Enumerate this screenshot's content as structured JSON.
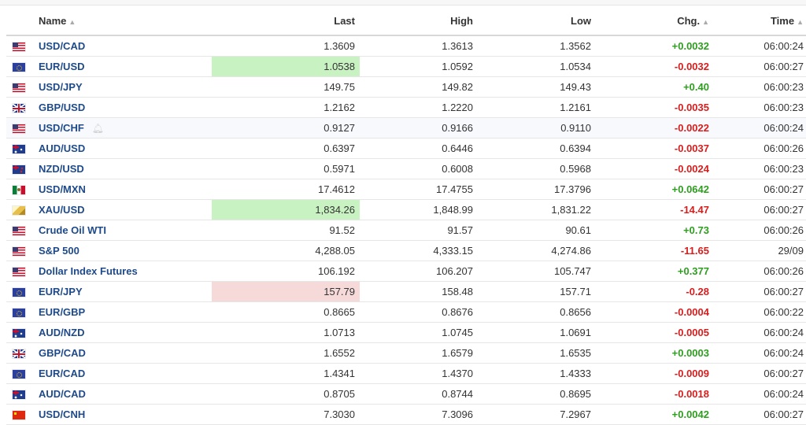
{
  "table": {
    "headers": {
      "name": "Name",
      "last": "Last",
      "high": "High",
      "low": "Low",
      "chg": "Chg.",
      "time": "Time"
    },
    "rows": [
      {
        "flag": "us",
        "name": "USD/CAD",
        "last": "1.3609",
        "high": "1.3613",
        "low": "1.3562",
        "chg": "+0.0032",
        "dir": "pos",
        "time": "06:00:24",
        "clock": "open",
        "hl": ""
      },
      {
        "flag": "eu",
        "name": "EUR/USD",
        "last": "1.0538",
        "high": "1.0592",
        "low": "1.0534",
        "chg": "-0.0032",
        "dir": "neg",
        "time": "06:00:27",
        "clock": "open",
        "hl": "up"
      },
      {
        "flag": "us",
        "name": "USD/JPY",
        "last": "149.75",
        "high": "149.82",
        "low": "149.43",
        "chg": "+0.40",
        "dir": "pos",
        "time": "06:00:23",
        "clock": "open",
        "hl": ""
      },
      {
        "flag": "gb",
        "name": "GBP/USD",
        "last": "1.2162",
        "high": "1.2220",
        "low": "1.2161",
        "chg": "-0.0035",
        "dir": "neg",
        "time": "06:00:23",
        "clock": "open",
        "hl": ""
      },
      {
        "flag": "us",
        "name": "USD/CHF",
        "last": "0.9127",
        "high": "0.9166",
        "low": "0.9110",
        "chg": "-0.0022",
        "dir": "neg",
        "time": "06:00:24",
        "clock": "open",
        "hl": "",
        "hover": true
      },
      {
        "flag": "au",
        "name": "AUD/USD",
        "last": "0.6397",
        "high": "0.6446",
        "low": "0.6394",
        "chg": "-0.0037",
        "dir": "neg",
        "time": "06:00:26",
        "clock": "open",
        "hl": ""
      },
      {
        "flag": "nz",
        "name": "NZD/USD",
        "last": "0.5971",
        "high": "0.6008",
        "low": "0.5968",
        "chg": "-0.0024",
        "dir": "neg",
        "time": "06:00:23",
        "clock": "open",
        "hl": ""
      },
      {
        "flag": "mx",
        "name": "USD/MXN",
        "last": "17.4612",
        "high": "17.4755",
        "low": "17.3796",
        "chg": "+0.0642",
        "dir": "pos",
        "time": "06:00:27",
        "clock": "open",
        "hl": ""
      },
      {
        "flag": "xau",
        "name": "XAU/USD",
        "last": "1,834.26",
        "high": "1,848.99",
        "low": "1,831.22",
        "chg": "-14.47",
        "dir": "neg",
        "time": "06:00:27",
        "clock": "open",
        "hl": "up"
      },
      {
        "flag": "us",
        "name": "Crude Oil WTI",
        "last": "91.52",
        "high": "91.57",
        "low": "90.61",
        "chg": "+0.73",
        "dir": "pos",
        "time": "06:00:26",
        "clock": "open",
        "hl": ""
      },
      {
        "flag": "us",
        "name": "S&P 500",
        "last": "4,288.05",
        "high": "4,333.15",
        "low": "4,274.86",
        "chg": "-11.65",
        "dir": "neg",
        "time": "29/09",
        "clock": "closed",
        "hl": ""
      },
      {
        "flag": "us",
        "name": "Dollar Index Futures",
        "last": "106.192",
        "high": "106.207",
        "low": "105.747",
        "chg": "+0.377",
        "dir": "pos",
        "time": "06:00:26",
        "clock": "open",
        "hl": ""
      },
      {
        "flag": "eu",
        "name": "EUR/JPY",
        "last": "157.79",
        "high": "158.48",
        "low": "157.71",
        "chg": "-0.28",
        "dir": "neg",
        "time": "06:00:27",
        "clock": "open",
        "hl": "down"
      },
      {
        "flag": "eu",
        "name": "EUR/GBP",
        "last": "0.8665",
        "high": "0.8676",
        "low": "0.8656",
        "chg": "-0.0004",
        "dir": "neg",
        "time": "06:00:22",
        "clock": "open",
        "hl": ""
      },
      {
        "flag": "au",
        "name": "AUD/NZD",
        "last": "1.0713",
        "high": "1.0745",
        "low": "1.0691",
        "chg": "-0.0005",
        "dir": "neg",
        "time": "06:00:24",
        "clock": "open",
        "hl": ""
      },
      {
        "flag": "gb",
        "name": "GBP/CAD",
        "last": "1.6552",
        "high": "1.6579",
        "low": "1.6535",
        "chg": "+0.0003",
        "dir": "pos",
        "time": "06:00:24",
        "clock": "open",
        "hl": ""
      },
      {
        "flag": "eu",
        "name": "EUR/CAD",
        "last": "1.4341",
        "high": "1.4370",
        "low": "1.4333",
        "chg": "-0.0009",
        "dir": "neg",
        "time": "06:00:27",
        "clock": "open",
        "hl": ""
      },
      {
        "flag": "au",
        "name": "AUD/CAD",
        "last": "0.8705",
        "high": "0.8744",
        "low": "0.8695",
        "chg": "-0.0018",
        "dir": "neg",
        "time": "06:00:24",
        "clock": "open",
        "hl": ""
      },
      {
        "flag": "cn",
        "name": "USD/CNH",
        "last": "7.3030",
        "high": "7.3096",
        "low": "7.2967",
        "chg": "+0.0042",
        "dir": "pos",
        "time": "06:00:27",
        "clock": "open",
        "hl": ""
      }
    ]
  },
  "colors": {
    "positive": "#2e9e1f",
    "negative": "#d91d1d",
    "link": "#1e4a8a",
    "highlight_up": "#c9f2c2",
    "highlight_down": "#f6dada",
    "clock_open": "#5bb14a",
    "clock_closed": "#e04a3a"
  }
}
